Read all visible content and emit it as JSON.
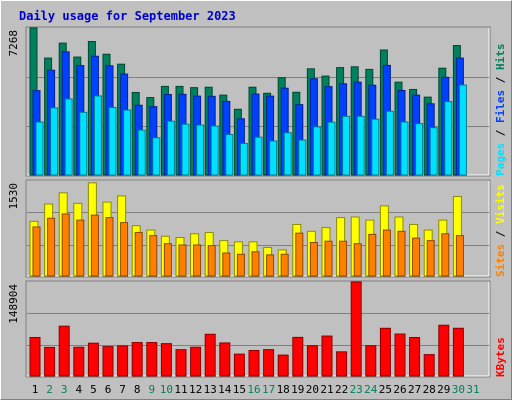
{
  "title": "Daily usage for September 2023",
  "colors": {
    "background": "#c0c0c0",
    "title": "#0000cc",
    "hits": "#00805c",
    "files": "#0040ff",
    "pages": "#00e0ff",
    "visits": "#ffff00",
    "sites": "#ff8000",
    "kbytes": "#ff0000",
    "weekend_day": "#00805c"
  },
  "chart_data": [
    {
      "type": "bar",
      "panel": "hits-files-pages",
      "ymax_label": "7268",
      "ylim": [
        0,
        7268
      ],
      "legend_labels": [
        "Pages",
        "Files",
        "Hits"
      ],
      "categories": [
        "1",
        "2",
        "3",
        "4",
        "5",
        "6",
        "7",
        "8",
        "9",
        "10",
        "11",
        "12",
        "13",
        "14",
        "15",
        "16",
        "17",
        "18",
        "19",
        "20",
        "21",
        "22",
        "23",
        "24",
        "25",
        "26",
        "27",
        "28",
        "29",
        "30",
        "31"
      ],
      "series": [
        {
          "name": "Hits",
          "values": [
            7270,
            5780,
            6520,
            5830,
            6600,
            5970,
            5480,
            4080,
            3830,
            4380,
            4380,
            4320,
            4340,
            3950,
            3250,
            4340,
            4040,
            4810,
            4090,
            5250,
            4890,
            5310,
            5350,
            5220,
            6180,
            4590,
            4230,
            3850,
            5280,
            6400,
            0
          ]
        },
        {
          "name": "Files",
          "values": [
            4170,
            5180,
            6090,
            5410,
            5870,
            5400,
            4990,
            3450,
            3380,
            3980,
            3990,
            3900,
            3890,
            3640,
            2780,
            4000,
            3900,
            4290,
            3480,
            4760,
            4370,
            4510,
            4590,
            4440,
            5420,
            4180,
            3950,
            3520,
            4830,
            5780,
            0
          ]
        },
        {
          "name": "Pages",
          "values": [
            2620,
            3320,
            3760,
            3100,
            3910,
            3340,
            3210,
            2220,
            1840,
            2660,
            2510,
            2470,
            2420,
            2000,
            1560,
            1870,
            1680,
            2090,
            1730,
            2380,
            2610,
            2900,
            2900,
            2760,
            3150,
            2620,
            2540,
            2340,
            3630,
            4450,
            0
          ]
        }
      ]
    },
    {
      "type": "bar",
      "panel": "visits-sites",
      "ymax_label": "1530",
      "ylim": [
        0,
        1530
      ],
      "legend_labels": [
        "Sites",
        "Visits"
      ],
      "categories": [
        "1",
        "2",
        "3",
        "4",
        "5",
        "6",
        "7",
        "8",
        "9",
        "10",
        "11",
        "12",
        "13",
        "14",
        "15",
        "16",
        "17",
        "18",
        "19",
        "20",
        "21",
        "22",
        "23",
        "24",
        "25",
        "26",
        "27",
        "28",
        "29",
        "30",
        "31"
      ],
      "series": [
        {
          "name": "Visits",
          "values": [
            880,
            1160,
            1340,
            1170,
            1500,
            1190,
            1290,
            810,
            740,
            640,
            620,
            680,
            700,
            570,
            550,
            550,
            460,
            420,
            830,
            720,
            780,
            940,
            950,
            900,
            1130,
            950,
            830,
            740,
            900,
            1280,
            0
          ]
        },
        {
          "name": "Sites",
          "values": [
            790,
            930,
            1000,
            900,
            980,
            940,
            860,
            700,
            650,
            520,
            500,
            500,
            490,
            370,
            350,
            390,
            340,
            350,
            690,
            540,
            560,
            560,
            520,
            670,
            740,
            720,
            610,
            570,
            680,
            650,
            0
          ]
        }
      ]
    },
    {
      "type": "bar",
      "panel": "kbytes",
      "ymax_label": "148904",
      "ylim": [
        0,
        148904
      ],
      "legend_labels": [
        "KBytes"
      ],
      "categories": [
        "1",
        "2",
        "3",
        "4",
        "5",
        "6",
        "7",
        "8",
        "9",
        "10",
        "11",
        "12",
        "13",
        "14",
        "15",
        "16",
        "17",
        "18",
        "19",
        "20",
        "21",
        "22",
        "23",
        "24",
        "25",
        "26",
        "27",
        "28",
        "29",
        "30",
        "31"
      ],
      "series": [
        {
          "name": "KBytes",
          "values": [
            61000,
            45300,
            78900,
            45500,
            52000,
            46600,
            47700,
            53000,
            53000,
            51300,
            41700,
            45600,
            66100,
            52400,
            34600,
            40400,
            41800,
            33100,
            61200,
            48000,
            63300,
            38300,
            148900,
            48000,
            75600,
            66500,
            61000,
            33900,
            80400,
            75600,
            0
          ]
        }
      ]
    }
  ],
  "x_axis": {
    "days": [
      "1",
      "2",
      "3",
      "4",
      "5",
      "6",
      "7",
      "8",
      "9",
      "10",
      "11",
      "12",
      "13",
      "14",
      "15",
      "16",
      "17",
      "18",
      "19",
      "20",
      "21",
      "22",
      "23",
      "24",
      "25",
      "26",
      "27",
      "28",
      "29",
      "30",
      "31"
    ],
    "weekend_days": [
      "2",
      "3",
      "9",
      "10",
      "16",
      "17",
      "23",
      "24",
      "30",
      "31"
    ]
  }
}
